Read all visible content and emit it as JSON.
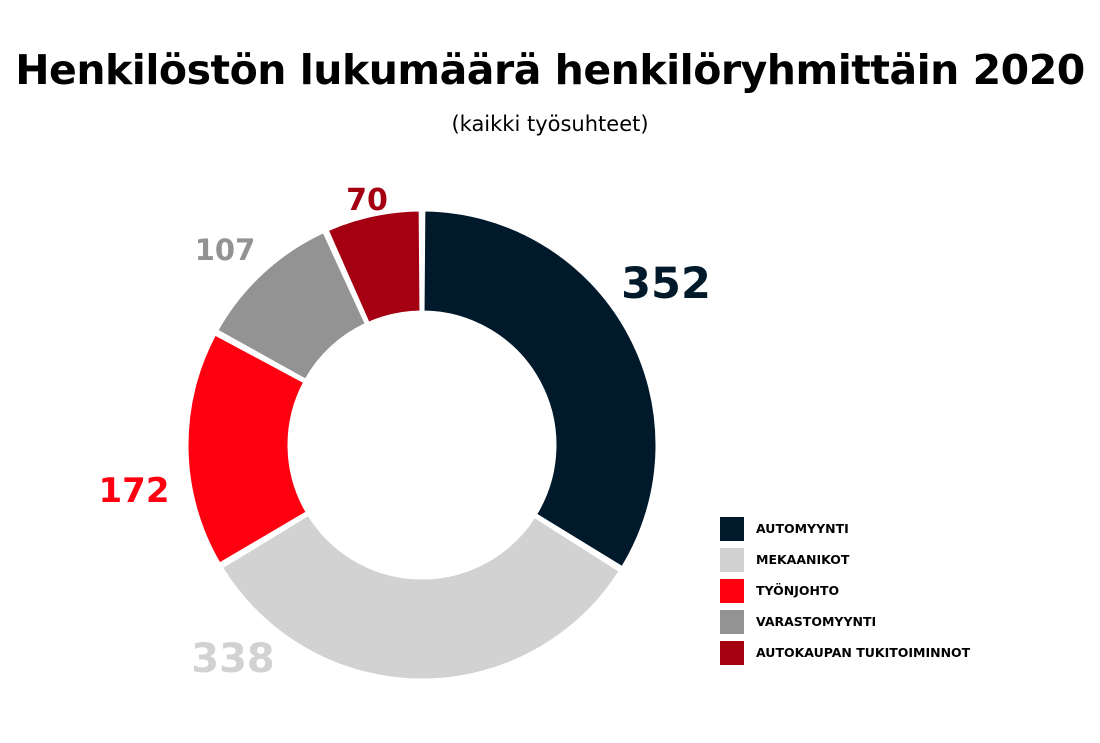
{
  "chart_data": {
    "type": "pie",
    "title": "Henkilöstön lukumäärä henkilöryhmittäin 2020",
    "subtitle": "(kaikki työsuhteet)",
    "donut": true,
    "legend_position": "bottom-right",
    "slices": [
      {
        "name": "AUTOMYYNTI",
        "value": 352,
        "label": "352",
        "color": "#001a2c"
      },
      {
        "name": "MEKAANIKOT",
        "value": 338,
        "label": "338",
        "color": "#d2d2d2"
      },
      {
        "name": "TYÖNJOHTO",
        "value": 172,
        "label": "172",
        "color": "#ff0011"
      },
      {
        "name": "VARASTOMYYNTI",
        "value": 107,
        "label": "107",
        "color": "#939393"
      },
      {
        "name": "AUTOKAUPAN TUKITOIMINNOT",
        "value": 70,
        "label": "70",
        "color": "#a50012"
      }
    ]
  }
}
